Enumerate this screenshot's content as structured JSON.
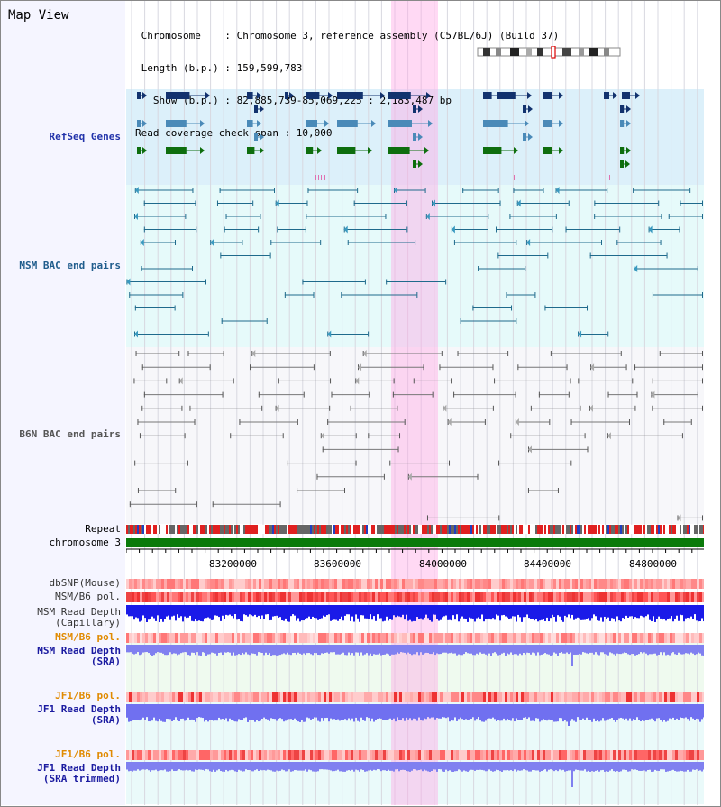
{
  "view": {
    "title": "Map View",
    "info_lines": [
      " Chromosome    : Chromosome 3, reference assembly (C57BL/6J) (Build 37)",
      " Length (b.p.) : 159,599,783",
      "   Show (b.p.) : 82,885,739-85,069,225 : 2,183,487 bp",
      "Read coverage check span : 10,000"
    ]
  },
  "tracks": {
    "refseq": "RefSeq Genes",
    "msm_bac": "MSM BAC end pairs",
    "b6n_bac": "B6N BAC end pairs",
    "repeat": "Repeat",
    "chromosome": "chromosome 3",
    "dbsnp": "dbSNP(Mouse)",
    "msm_b6_pol": "MSM/B6 pol.",
    "msm_rd_cap_1": "MSM Read Depth",
    "msm_rd_cap_2": "(Capillary)",
    "msm_b6_pol_2": "MSM/B6 pol.",
    "msm_rd_sra_1": "MSM Read Depth",
    "msm_rd_sra_2": "(SRA)",
    "jf1_b6_pol": "JF1/B6 pol.",
    "jf1_rd_sra_1": "JF1 Read Depth",
    "jf1_rd_sra_2": "(SRA)",
    "jf1_b6_pol_2": "JF1/B6 pol.",
    "jf1_rd_trim_1": "JF1 Read Depth",
    "jf1_rd_trim_2": "(SRA trimmed)"
  },
  "axis": {
    "ticks": [
      "83200000",
      "83600000",
      "84000000",
      "84400000",
      "84800000"
    ]
  },
  "colors": {
    "refseq_bg": "#dcf0fa",
    "msm_bg": "#e6fafa",
    "b6n_bg": "#f5f5f8",
    "msm_label": "#1f5c8c",
    "refseq_label": "#2233aa",
    "b6n_label": "#555555",
    "orange_label": "#e08a00",
    "blue_label": "#1a1aa0",
    "highlight": "#ffaaee"
  }
}
